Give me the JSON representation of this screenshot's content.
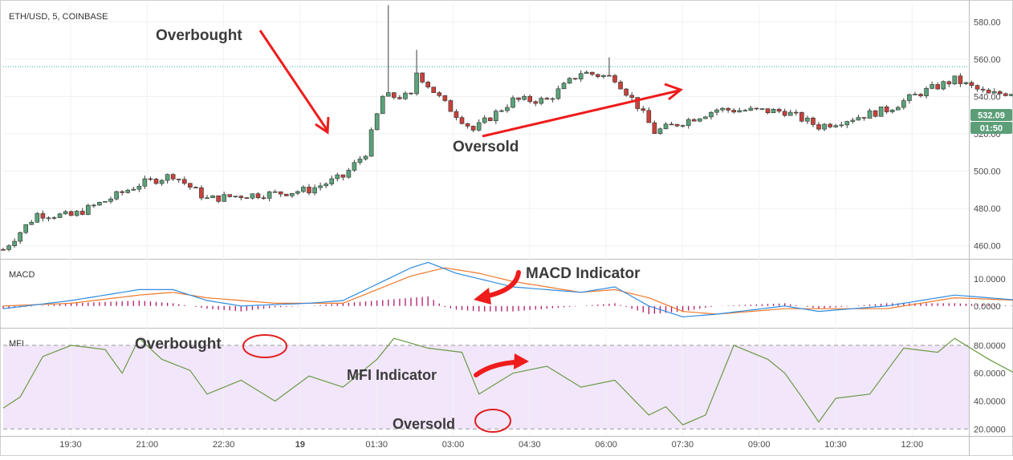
{
  "header": {
    "symbol_title": "ETH/USD, 5, COINBASE"
  },
  "panes": {
    "macd_title": "MACD",
    "mfi_title": "MFI"
  },
  "price_badges": {
    "last_price": "532.09",
    "countdown": "01:50"
  },
  "annotations": {
    "price_overbought": "Overbought",
    "price_oversold": "Oversold",
    "macd_indicator": "MACD Indicator",
    "mfi_overbought": "Overbought",
    "mfi_indicator": "MFI Indicator",
    "mfi_oversold": "Oversold"
  },
  "colors": {
    "up_candle": "#5ba37a",
    "down_candle": "#c9423b",
    "macd_line": "#2f8be0",
    "signal_line": "#f0782a",
    "histogram": "#b0186a",
    "mfi_line": "#6a9a45",
    "mfi_band": "#f2e6fb",
    "annotation_arrow": "#ee1c1c",
    "last_price_badge": "#5b9e78",
    "dotted_level": "#2aa5a5"
  },
  "chart_data": [
    {
      "type": "candlestick",
      "title": "ETH/USD, 5, COINBASE",
      "x_ticks": [
        "19:30",
        "21:00",
        "22:30",
        "19",
        "01:30",
        "03:00",
        "04:30",
        "06:00",
        "07:30",
        "09:00",
        "10:30",
        "12:00"
      ],
      "y_ticks": [
        "460.00",
        "480.00",
        "500.00",
        "520.00",
        "540.00",
        "560.00",
        "580.00"
      ],
      "ylim": [
        453,
        590
      ],
      "dotted_level": 556,
      "last_price": 532.09,
      "anchor_points_close": [
        {
          "x": "18:00",
          "y": 458
        },
        {
          "x": "18:30",
          "y": 477
        },
        {
          "x": "19:00",
          "y": 476
        },
        {
          "x": "19:30",
          "y": 484
        },
        {
          "x": "20:00",
          "y": 493
        },
        {
          "x": "20:30",
          "y": 498
        },
        {
          "x": "21:00",
          "y": 485
        },
        {
          "x": "21:30",
          "y": 487
        },
        {
          "x": "22:00",
          "y": 488
        },
        {
          "x": "22:30",
          "y": 490
        },
        {
          "x": "23:00",
          "y": 497
        },
        {
          "x": "23:20",
          "y": 510
        },
        {
          "x": "23:35",
          "y": 540
        },
        {
          "x": "00:00",
          "y": 540
        },
        {
          "x": "00:05",
          "y": 553
        },
        {
          "x": "00:30",
          "y": 536
        },
        {
          "x": "00:55",
          "y": 522
        },
        {
          "x": "01:30",
          "y": 538
        },
        {
          "x": "02:00",
          "y": 538
        },
        {
          "x": "02:30",
          "y": 553
        },
        {
          "x": "03:00",
          "y": 550
        },
        {
          "x": "03:20",
          "y": 535
        },
        {
          "x": "03:35",
          "y": 521
        },
        {
          "x": "04:30",
          "y": 533
        },
        {
          "x": "05:30",
          "y": 532
        },
        {
          "x": "06:00",
          "y": 524
        },
        {
          "x": "07:00",
          "y": 533
        },
        {
          "x": "07:30",
          "y": 542
        },
        {
          "x": "08:00",
          "y": 549
        },
        {
          "x": "08:30",
          "y": 541
        },
        {
          "x": "09:30",
          "y": 545
        },
        {
          "x": "10:15",
          "y": 551
        },
        {
          "x": "10:45",
          "y": 548
        },
        {
          "x": "11:00",
          "y": 533
        },
        {
          "x": "11:45",
          "y": 522
        },
        {
          "x": "12:20",
          "y": 520
        },
        {
          "x": "12:40",
          "y": 532
        }
      ]
    },
    {
      "type": "line",
      "title": "MACD",
      "y_ticks": [
        "0.0000",
        "10.0000"
      ],
      "ylim": [
        -8,
        17
      ],
      "series": [
        {
          "values": [
            {
              "x": "18:00",
              "y": -1
            },
            {
              "x": "19:00",
              "y": 2
            },
            {
              "x": "20:00",
              "y": 6
            },
            {
              "x": "20:30",
              "y": 6
            },
            {
              "x": "21:00",
              "y": 2
            },
            {
              "x": "21:30",
              "y": 0
            },
            {
              "x": "22:30",
              "y": 1
            },
            {
              "x": "23:00",
              "y": 2
            },
            {
              "x": "23:30",
              "y": 8
            },
            {
              "x": "00:00",
              "y": 14
            },
            {
              "x": "00:15",
              "y": 16
            },
            {
              "x": "00:40",
              "y": 12
            },
            {
              "x": "01:30",
              "y": 7
            },
            {
              "x": "02:30",
              "y": 5
            },
            {
              "x": "03:00",
              "y": 7
            },
            {
              "x": "03:30",
              "y": 0
            },
            {
              "x": "04:00",
              "y": -4
            },
            {
              "x": "04:30",
              "y": -3
            },
            {
              "x": "05:30",
              "y": 0
            },
            {
              "x": "06:00",
              "y": -2
            },
            {
              "x": "07:00",
              "y": 0
            },
            {
              "x": "08:00",
              "y": 4
            },
            {
              "x": "09:00",
              "y": 2
            },
            {
              "x": "10:00",
              "y": 1
            },
            {
              "x": "10:40",
              "y": 2
            },
            {
              "x": "11:00",
              "y": -1
            },
            {
              "x": "11:30",
              "y": -4
            },
            {
              "x": "12:00",
              "y": -6
            },
            {
              "x": "12:25",
              "y": -7
            },
            {
              "x": "12:45",
              "y": -4
            }
          ]
        },
        {
          "values": [
            {
              "x": "18:00",
              "y": 0
            },
            {
              "x": "19:00",
              "y": 1
            },
            {
              "x": "20:00",
              "y": 4
            },
            {
              "x": "20:30",
              "y": 5
            },
            {
              "x": "21:00",
              "y": 3
            },
            {
              "x": "22:00",
              "y": 1
            },
            {
              "x": "23:00",
              "y": 1
            },
            {
              "x": "23:30",
              "y": 6
            },
            {
              "x": "00:00",
              "y": 11
            },
            {
              "x": "00:30",
              "y": 14
            },
            {
              "x": "01:00",
              "y": 12
            },
            {
              "x": "01:30",
              "y": 9
            },
            {
              "x": "02:30",
              "y": 5
            },
            {
              "x": "03:00",
              "y": 6
            },
            {
              "x": "03:30",
              "y": 3
            },
            {
              "x": "04:00",
              "y": -2
            },
            {
              "x": "04:30",
              "y": -3
            },
            {
              "x": "05:30",
              "y": -1
            },
            {
              "x": "06:00",
              "y": -1
            },
            {
              "x": "07:00",
              "y": -1
            },
            {
              "x": "08:00",
              "y": 3
            },
            {
              "x": "09:00",
              "y": 2
            },
            {
              "x": "10:00",
              "y": 1
            },
            {
              "x": "10:40",
              "y": 1
            },
            {
              "x": "11:00",
              "y": 0
            },
            {
              "x": "11:30",
              "y": -2
            },
            {
              "x": "12:00",
              "y": -4
            },
            {
              "x": "12:25",
              "y": -6
            },
            {
              "x": "12:45",
              "y": -6
            }
          ]
        }
      ]
    },
    {
      "type": "line",
      "title": "MFI",
      "y_ticks": [
        "20.0000",
        "40.0000",
        "60.0000",
        "80.0000"
      ],
      "ylim": [
        15,
        92
      ],
      "bands": [
        20,
        80
      ],
      "series": [
        {
          "values": [
            {
              "x": "18:00",
              "y": 35
            },
            {
              "x": "18:15",
              "y": 43
            },
            {
              "x": "18:35",
              "y": 72
            },
            {
              "x": "19:00",
              "y": 80
            },
            {
              "x": "19:30",
              "y": 77
            },
            {
              "x": "19:45",
              "y": 60
            },
            {
              "x": "20:00",
              "y": 85
            },
            {
              "x": "20:20",
              "y": 70
            },
            {
              "x": "20:45",
              "y": 62
            },
            {
              "x": "21:00",
              "y": 45
            },
            {
              "x": "21:30",
              "y": 55
            },
            {
              "x": "22:00",
              "y": 40
            },
            {
              "x": "22:30",
              "y": 58
            },
            {
              "x": "23:00",
              "y": 50
            },
            {
              "x": "23:30",
              "y": 70
            },
            {
              "x": "23:45",
              "y": 85
            },
            {
              "x": "00:15",
              "y": 78
            },
            {
              "x": "00:45",
              "y": 75
            },
            {
              "x": "01:00",
              "y": 45
            },
            {
              "x": "01:30",
              "y": 60
            },
            {
              "x": "02:00",
              "y": 65
            },
            {
              "x": "02:30",
              "y": 50
            },
            {
              "x": "03:00",
              "y": 55
            },
            {
              "x": "03:30",
              "y": 30
            },
            {
              "x": "03:45",
              "y": 36
            },
            {
              "x": "04:00",
              "y": 23
            },
            {
              "x": "04:20",
              "y": 30
            },
            {
              "x": "04:45",
              "y": 80
            },
            {
              "x": "05:15",
              "y": 70
            },
            {
              "x": "05:30",
              "y": 60
            },
            {
              "x": "05:45",
              "y": 43
            },
            {
              "x": "06:00",
              "y": 25
            },
            {
              "x": "06:15",
              "y": 42
            },
            {
              "x": "06:45",
              "y": 45
            },
            {
              "x": "07:15",
              "y": 78
            },
            {
              "x": "07:45",
              "y": 75
            },
            {
              "x": "08:00",
              "y": 85
            },
            {
              "x": "08:30",
              "y": 70
            },
            {
              "x": "09:00",
              "y": 57
            },
            {
              "x": "09:15",
              "y": 43
            },
            {
              "x": "09:45",
              "y": 60
            },
            {
              "x": "10:00",
              "y": 75
            },
            {
              "x": "10:30",
              "y": 55
            },
            {
              "x": "10:45",
              "y": 65
            },
            {
              "x": "11:00",
              "y": 45
            },
            {
              "x": "11:15",
              "y": 27
            },
            {
              "x": "11:30",
              "y": 37
            },
            {
              "x": "11:45",
              "y": 28
            },
            {
              "x": "12:00",
              "y": 22
            },
            {
              "x": "12:15",
              "y": 33
            },
            {
              "x": "12:30",
              "y": 30
            },
            {
              "x": "12:45",
              "y": 55
            }
          ]
        }
      ]
    }
  ]
}
